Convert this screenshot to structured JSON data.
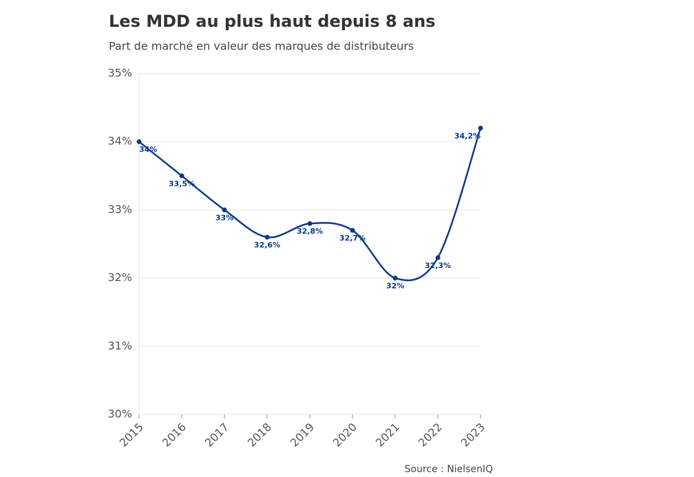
{
  "chart_data": {
    "type": "line",
    "title": "Les MDD au plus haut depuis 8 ans",
    "subtitle": "Part de marché en valeur des marques de distributeurs",
    "source": "Source : NielsenIQ",
    "x": [
      2015,
      2016,
      2017,
      2018,
      2019,
      2020,
      2021,
      2022,
      2023
    ],
    "values": [
      34,
      33.5,
      33,
      32.6,
      32.8,
      32.7,
      32,
      32.3,
      34.2
    ],
    "value_labels": [
      "34%",
      "33,5%",
      "33%",
      "32,6%",
      "32,8%",
      "32,7%",
      "32%",
      "32,3%",
      "34,2%"
    ],
    "color": "#0d3a86",
    "xlim": [
      2015,
      2023
    ],
    "xticks": [
      2015,
      2016,
      2017,
      2018,
      2019,
      2020,
      2021,
      2022,
      2023
    ],
    "ylim": [
      30,
      35
    ],
    "yticks": [
      {
        "value": 30,
        "label": "30%"
      },
      {
        "value": 31,
        "label": "31%"
      },
      {
        "value": 32,
        "label": "32%"
      },
      {
        "value": 33,
        "label": "33%"
      },
      {
        "value": 34,
        "label": "34%"
      },
      {
        "value": 35,
        "label": "35%"
      }
    ],
    "grid": true
  }
}
